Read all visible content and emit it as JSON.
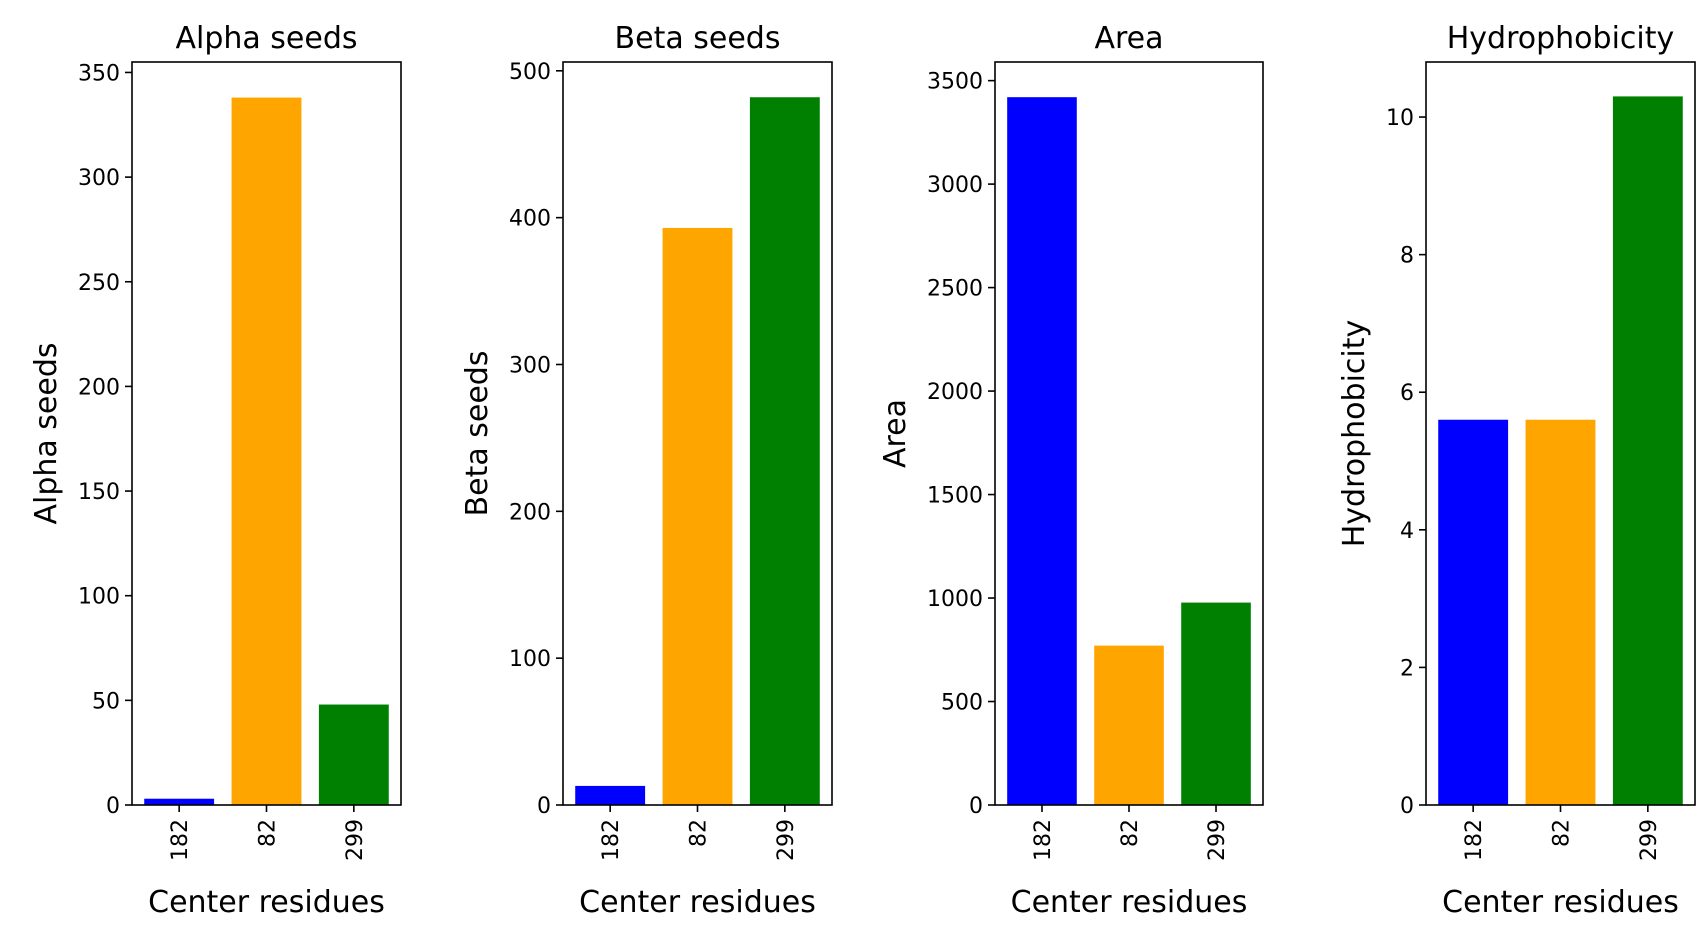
{
  "chart_data": [
    {
      "type": "bar",
      "title": "Alpha seeds",
      "xlabel": "Center residues",
      "ylabel": "Alpha seeds",
      "categories": [
        "182",
        "82",
        "299"
      ],
      "values": [
        3,
        338,
        48
      ],
      "colors": [
        "#0000ff",
        "#ffa500",
        "#008000"
      ],
      "ylim": [
        0,
        355
      ],
      "yticks": [
        0,
        50,
        100,
        150,
        200,
        250,
        300,
        350
      ],
      "ytick_labels": [
        "0",
        "50",
        "100",
        "150",
        "200",
        "250",
        "300",
        "350"
      ],
      "grid": false
    },
    {
      "type": "bar",
      "title": "Beta seeds",
      "xlabel": "Center residues",
      "ylabel": "Beta seeds",
      "categories": [
        "182",
        "82",
        "299"
      ],
      "values": [
        13,
        393,
        482
      ],
      "colors": [
        "#0000ff",
        "#ffa500",
        "#008000"
      ],
      "ylim": [
        0,
        506
      ],
      "yticks": [
        0,
        100,
        200,
        300,
        400,
        500
      ],
      "ytick_labels": [
        "0",
        "100",
        "200",
        "300",
        "400",
        "500"
      ],
      "grid": false
    },
    {
      "type": "bar",
      "title": "Area",
      "xlabel": "Center residues",
      "ylabel": "Area",
      "categories": [
        "182",
        "82",
        "299"
      ],
      "values": [
        3420,
        770,
        978
      ],
      "colors": [
        "#0000ff",
        "#ffa500",
        "#008000"
      ],
      "ylim": [
        0,
        3590
      ],
      "yticks": [
        0,
        500,
        1000,
        1500,
        2000,
        2500,
        3000,
        3500
      ],
      "ytick_labels": [
        "0",
        "500",
        "1000",
        "1500",
        "2000",
        "2500",
        "3000",
        "3500"
      ],
      "grid": false
    },
    {
      "type": "bar",
      "title": "Hydrophobicity",
      "xlabel": "Center residues",
      "ylabel": "Hydrophobicity",
      "categories": [
        "182",
        "82",
        "299"
      ],
      "values": [
        5.6,
        5.6,
        10.3
      ],
      "colors": [
        "#0000ff",
        "#ffa500",
        "#008000"
      ],
      "ylim": [
        0,
        10.8
      ],
      "yticks": [
        0,
        2,
        4,
        6,
        8,
        10
      ],
      "ytick_labels": [
        "0",
        "2",
        "4",
        "6",
        "8",
        "10"
      ],
      "grid": false
    }
  ]
}
